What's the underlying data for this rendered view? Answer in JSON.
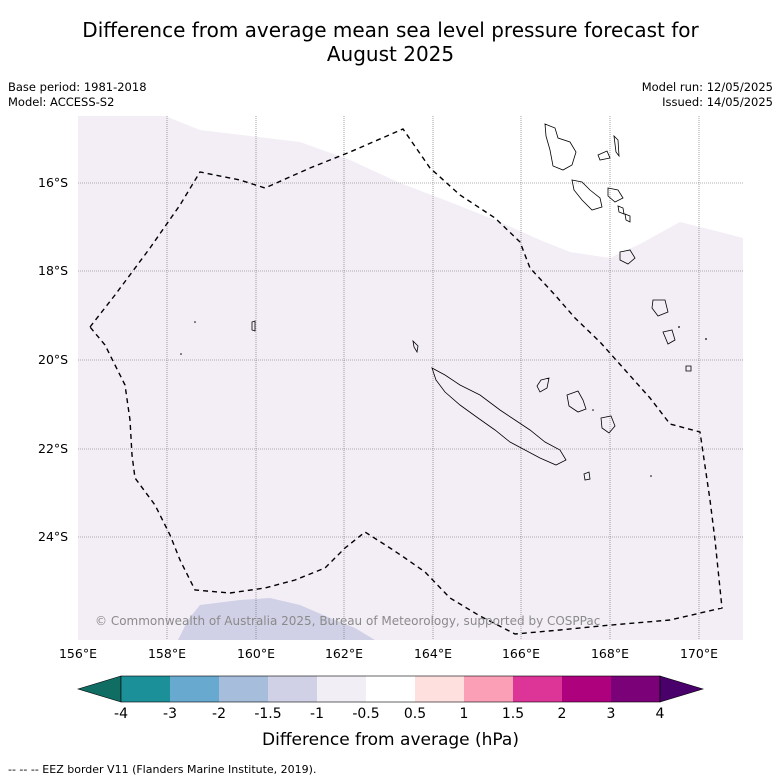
{
  "title_line1": "Difference from average mean sea level pressure forecast for",
  "title_line2": "August 2025",
  "base_period": "Base period: 1981-2018",
  "model": "Model: ACCESS-S2",
  "model_run": "Model run: 12/05/2025",
  "issued": "Issued: 14/05/2025",
  "copyright": "© Commonwealth of Australia 2025, Bureau of Meteorology, supported by COSPPac",
  "lat_labels": [
    "16°S",
    "18°S",
    "20°S",
    "22°S",
    "24°S"
  ],
  "lon_labels": [
    "156°E",
    "158°E",
    "160°E",
    "162°E",
    "164°E",
    "166°E",
    "168°E",
    "170°E"
  ],
  "colorbar": {
    "title": "Difference from average (hPa)",
    "ticks": [
      "-4",
      "-3",
      "-2",
      "-1.5",
      "-1",
      "-0.5",
      "0.5",
      "1",
      "1.5",
      "2",
      "3",
      "4"
    ],
    "colors": [
      "#0f6d63",
      "#1c9099",
      "#67a9cf",
      "#a6bddb",
      "#d0d1e6",
      "#f1eef6",
      "#ffffff",
      "#fee0df",
      "#fa9fb5",
      "#dd3497",
      "#ae017e",
      "#7a0177",
      "#49006a"
    ]
  },
  "footer": "--  --  -- EEZ border V11 (Flanders Marine Institute, 2019)."
}
